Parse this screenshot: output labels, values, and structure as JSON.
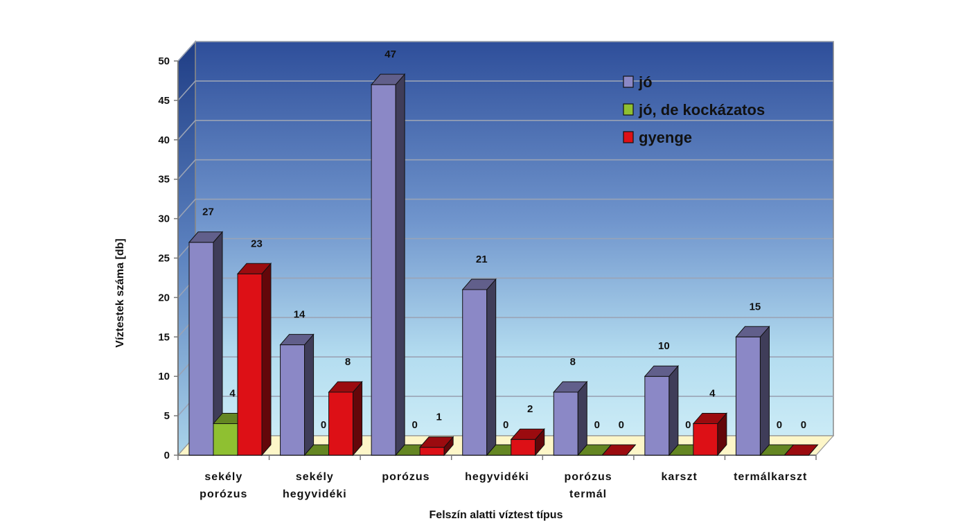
{
  "chart_data": {
    "type": "bar",
    "variant": "3d-clustered-column",
    "xlabel": "Felszín alatti víztest típus",
    "ylabel": "Víztestek száma [db]",
    "ylim": [
      0,
      50
    ],
    "yticks": [
      0,
      5,
      10,
      15,
      20,
      25,
      30,
      35,
      40,
      45,
      50
    ],
    "grid": true,
    "legend_position": "top-right",
    "categories": [
      [
        "sekély",
        "porózus"
      ],
      [
        "sekély",
        "hegyvidéki"
      ],
      [
        "porózus"
      ],
      [
        "hegyvidéki"
      ],
      [
        "porózus",
        "termál"
      ],
      [
        "karszt"
      ],
      [
        "termálkarszt"
      ]
    ],
    "series": [
      {
        "name": "jó",
        "values": [
          27,
          14,
          47,
          21,
          8,
          10,
          15
        ],
        "color": "#8B88C6"
      },
      {
        "name": "jó, de kockázatos",
        "values": [
          4,
          0,
          0,
          0,
          0,
          0,
          0
        ],
        "color": "#8FC031"
      },
      {
        "name": "gyenge",
        "values": [
          23,
          8,
          1,
          2,
          0,
          4,
          0
        ],
        "color": "#DD1016"
      }
    ]
  }
}
